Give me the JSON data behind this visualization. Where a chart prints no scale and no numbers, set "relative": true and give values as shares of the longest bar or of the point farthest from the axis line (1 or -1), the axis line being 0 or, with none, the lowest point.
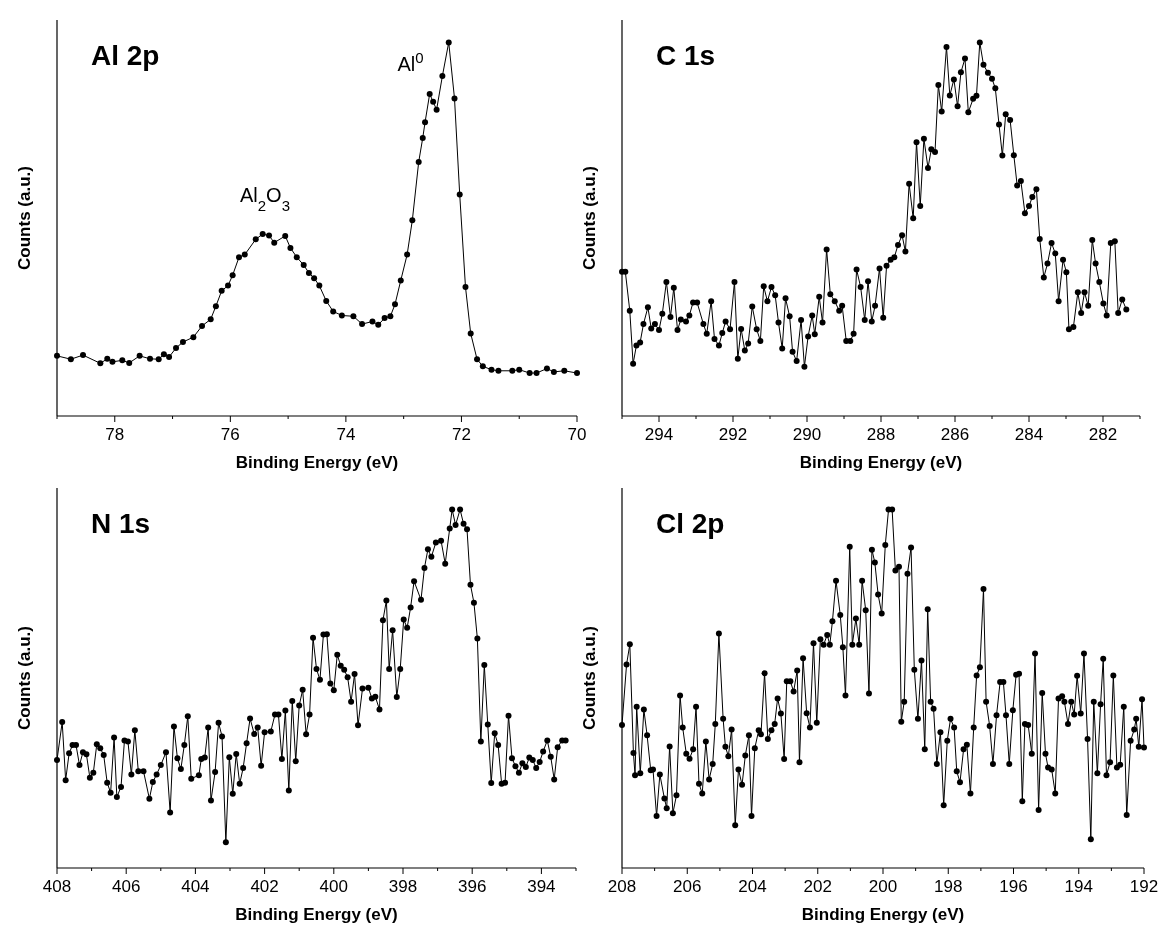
{
  "chart_data": [
    {
      "type": "line",
      "title": "Al 2p",
      "xlabel": "Binding Energy (eV)",
      "ylabel": "Counts (a.u.)",
      "relative": true,
      "marker": "circle",
      "line_style": "solid",
      "xlim": [
        79,
        70
      ],
      "xticks": [
        {
          "value": 79,
          "label": null
        },
        78,
        {
          "value": 77,
          "label": null
        },
        76,
        {
          "value": 75,
          "label": null
        },
        74,
        {
          "value": 73,
          "label": null
        },
        72,
        {
          "value": 71,
          "label": null
        },
        70
      ],
      "annotations": [
        "Al$_{2}$O$_{3}$",
        "Al$^{0}$"
      ],
      "x": [
        79.0,
        78.76,
        78.55,
        78.25,
        78.13,
        78.04,
        77.87,
        77.75,
        77.57,
        77.39,
        77.24,
        77.15,
        77.06,
        76.94,
        76.82,
        76.64,
        76.49,
        76.34,
        76.25,
        76.15,
        76.04,
        75.96,
        75.85,
        75.75,
        75.56,
        75.44,
        75.33,
        75.24,
        75.05,
        74.96,
        74.85,
        74.73,
        74.64,
        74.55,
        74.46,
        74.34,
        74.22,
        74.07,
        73.87,
        73.72,
        73.54,
        73.44,
        73.33,
        73.23,
        73.15,
        73.05,
        72.94,
        72.85,
        72.74,
        72.67,
        72.63,
        72.55,
        72.49,
        72.43,
        72.33,
        72.22,
        72.12,
        72.03,
        71.93,
        71.84,
        71.73,
        71.63,
        71.48,
        71.36,
        71.12,
        71.0,
        70.82,
        70.7,
        70.52,
        70.4,
        70.22,
        70.0
      ],
      "series": [
        {
          "color": "#000000",
          "values": [
            0.161,
            0.152,
            0.163,
            0.141,
            0.153,
            0.145,
            0.149,
            0.142,
            0.161,
            0.153,
            0.152,
            0.165,
            0.158,
            0.182,
            0.198,
            0.211,
            0.241,
            0.259,
            0.294,
            0.335,
            0.349,
            0.377,
            0.425,
            0.432,
            0.473,
            0.487,
            0.483,
            0.464,
            0.482,
            0.45,
            0.425,
            0.404,
            0.383,
            0.369,
            0.349,
            0.308,
            0.28,
            0.269,
            0.267,
            0.246,
            0.253,
            0.244,
            0.262,
            0.267,
            0.299,
            0.363,
            0.432,
            0.524,
            0.68,
            0.744,
            0.786,
            0.862,
            0.841,
            0.82,
            0.91,
            1.0,
            0.85,
            0.593,
            0.345,
            0.221,
            0.152,
            0.133,
            0.124,
            0.121,
            0.121,
            0.124,
            0.115,
            0.115,
            0.127,
            0.118,
            0.121,
            0.115
          ]
        }
      ]
    },
    {
      "type": "line",
      "title": "C 1s",
      "xlabel": "Binding Energy (eV)",
      "ylabel": "Counts (a.u.)",
      "relative": true,
      "marker": "circle",
      "line_style": "solid",
      "xlim": [
        295,
        281
      ],
      "xticks": [
        {
          "value": 295,
          "label": null
        },
        294,
        {
          "value": 293,
          "label": null
        },
        292,
        {
          "value": 291,
          "label": null
        },
        290,
        {
          "value": 289,
          "label": null
        },
        288,
        {
          "value": 287,
          "label": null
        },
        286,
        {
          "value": 285,
          "label": null
        },
        284,
        {
          "value": 283,
          "label": null
        },
        282,
        {
          "value": 281,
          "label": null
        }
      ],
      "x": [
        295.0,
        294.91,
        294.79,
        294.7,
        294.61,
        294.51,
        294.42,
        294.3,
        294.21,
        294.11,
        294.0,
        293.91,
        293.8,
        293.69,
        293.6,
        293.5,
        293.41,
        293.27,
        293.18,
        293.08,
        292.97,
        292.8,
        292.71,
        292.59,
        292.5,
        292.38,
        292.29,
        292.2,
        292.08,
        291.96,
        291.87,
        291.78,
        291.68,
        291.59,
        291.48,
        291.36,
        291.26,
        291.17,
        291.07,
        290.96,
        290.86,
        290.77,
        290.67,
        290.58,
        290.47,
        290.39,
        290.28,
        290.16,
        290.07,
        289.97,
        289.86,
        289.79,
        289.67,
        289.58,
        289.47,
        289.37,
        289.25,
        289.13,
        289.05,
        288.94,
        288.83,
        288.74,
        288.66,
        288.55,
        288.44,
        288.35,
        288.25,
        288.16,
        288.04,
        287.94,
        287.85,
        287.74,
        287.64,
        287.54,
        287.43,
        287.34,
        287.24,
        287.13,
        287.04,
        286.94,
        286.84,
        286.73,
        286.64,
        286.54,
        286.45,
        286.36,
        286.23,
        286.14,
        286.03,
        285.93,
        285.84,
        285.73,
        285.64,
        285.51,
        285.42,
        285.33,
        285.23,
        285.11,
        285.0,
        284.91,
        284.81,
        284.72,
        284.63,
        284.51,
        284.41,
        284.32,
        284.22,
        284.11,
        284.0,
        283.91,
        283.8,
        283.71,
        283.6,
        283.5,
        283.39,
        283.29,
        283.2,
        283.08,
        282.99,
        282.92,
        282.8,
        282.68,
        282.59,
        282.5,
        282.4,
        282.29,
        282.2,
        282.1,
        281.99,
        281.9,
        281.79,
        281.68,
        281.59,
        281.48,
        281.37
      ],
      "series": [
        {
          "color": "#000000",
          "values": [
            0.386,
            0.386,
            0.282,
            0.14,
            0.189,
            0.197,
            0.246,
            0.291,
            0.234,
            0.246,
            0.23,
            0.274,
            0.359,
            0.265,
            0.343,
            0.23,
            0.258,
            0.253,
            0.269,
            0.304,
            0.304,
            0.246,
            0.22,
            0.307,
            0.206,
            0.189,
            0.222,
            0.253,
            0.232,
            0.359,
            0.153,
            0.233,
            0.175,
            0.194,
            0.293,
            0.232,
            0.201,
            0.347,
            0.307,
            0.345,
            0.323,
            0.25,
            0.181,
            0.315,
            0.267,
            0.172,
            0.147,
            0.257,
            0.132,
            0.213,
            0.269,
            0.219,
            0.319,
            0.25,
            0.446,
            0.326,
            0.307,
            0.282,
            0.295,
            0.201,
            0.201,
            0.22,
            0.392,
            0.345,
            0.257,
            0.361,
            0.253,
            0.295,
            0.395,
            0.263,
            0.402,
            0.418,
            0.425,
            0.458,
            0.484,
            0.44,
            0.622,
            0.529,
            0.733,
            0.562,
            0.742,
            0.664,
            0.714,
            0.707,
            0.886,
            0.815,
            0.988,
            0.858,
            0.901,
            0.829,
            0.92,
            0.957,
            0.813,
            0.849,
            0.857,
            1.0,
            0.94,
            0.919,
            0.903,
            0.877,
            0.78,
            0.697,
            0.808,
            0.792,
            0.698,
            0.617,
            0.629,
            0.543,
            0.562,
            0.586,
            0.607,
            0.474,
            0.371,
            0.408,
            0.463,
            0.435,
            0.307,
            0.418,
            0.385,
            0.232,
            0.238,
            0.331,
            0.276,
            0.331,
            0.295,
            0.471,
            0.408,
            0.359,
            0.301,
            0.269,
            0.463,
            0.468,
            0.276,
            0.312,
            0.285
          ]
        }
      ]
    },
    {
      "type": "line",
      "title": "N 1s",
      "xlabel": "Binding Energy (eV)",
      "ylabel": "Counts (a.u.)",
      "relative": true,
      "marker": "circle",
      "line_style": "solid",
      "xlim": [
        408,
        393
      ],
      "xticks": [
        408,
        {
          "value": 407,
          "label": null
        },
        406,
        {
          "value": 405,
          "label": null
        },
        404,
        {
          "value": 403,
          "label": null
        },
        402,
        {
          "value": 401,
          "label": null
        },
        400,
        {
          "value": 399,
          "label": null
        },
        398,
        {
          "value": 397,
          "label": null
        },
        396,
        {
          "value": 395,
          "label": null
        },
        394,
        {
          "value": 393,
          "label": null
        }
      ],
      "x": [
        408.0,
        407.85,
        407.75,
        407.65,
        407.55,
        407.45,
        407.35,
        407.25,
        407.15,
        407.05,
        406.95,
        406.85,
        406.75,
        406.65,
        406.55,
        406.45,
        406.35,
        406.27,
        406.15,
        406.05,
        405.95,
        405.85,
        405.75,
        405.65,
        405.5,
        405.33,
        405.23,
        405.12,
        405.0,
        404.85,
        404.73,
        404.62,
        404.52,
        404.42,
        404.32,
        404.22,
        404.12,
        403.9,
        403.83,
        403.73,
        403.63,
        403.55,
        403.43,
        403.33,
        403.23,
        403.12,
        403.02,
        402.92,
        402.82,
        402.72,
        402.62,
        402.52,
        402.42,
        402.3,
        402.2,
        402.1,
        402.0,
        401.82,
        401.7,
        401.6,
        401.5,
        401.4,
        401.3,
        401.2,
        401.1,
        401.0,
        400.9,
        400.8,
        400.7,
        400.6,
        400.5,
        400.4,
        400.3,
        400.2,
        400.1,
        400.0,
        399.9,
        399.8,
        399.7,
        399.6,
        399.5,
        399.4,
        399.3,
        399.17,
        399.0,
        398.9,
        398.8,
        398.68,
        398.58,
        398.48,
        398.4,
        398.3,
        398.18,
        398.08,
        397.98,
        397.88,
        397.78,
        397.68,
        397.48,
        397.38,
        397.28,
        397.18,
        397.05,
        396.9,
        396.78,
        396.65,
        396.58,
        396.48,
        396.35,
        396.25,
        396.15,
        396.05,
        395.95,
        395.85,
        395.75,
        395.65,
        395.55,
        395.45,
        395.35,
        395.25,
        395.15,
        395.05,
        394.95,
        394.85,
        394.75,
        394.65,
        394.55,
        394.45,
        394.35,
        394.25,
        394.15,
        394.05,
        393.95,
        393.83,
        393.73,
        393.63,
        393.53,
        393.4,
        393.3
      ],
      "series": [
        {
          "color": "#000000",
          "values": [
            0.301,
            0.407,
            0.245,
            0.32,
            0.343,
            0.343,
            0.287,
            0.323,
            0.317,
            0.252,
            0.266,
            0.345,
            0.334,
            0.315,
            0.238,
            0.21,
            0.364,
            0.198,
            0.226,
            0.356,
            0.353,
            0.261,
            0.384,
            0.27,
            0.27,
            0.193,
            0.24,
            0.261,
            0.287,
            0.323,
            0.155,
            0.395,
            0.306,
            0.276,
            0.343,
            0.423,
            0.249,
            0.259,
            0.304,
            0.308,
            0.392,
            0.188,
            0.268,
            0.405,
            0.367,
            0.072,
            0.309,
            0.207,
            0.318,
            0.235,
            0.279,
            0.348,
            0.417,
            0.374,
            0.392,
            0.285,
            0.379,
            0.381,
            0.428,
            0.428,
            0.304,
            0.439,
            0.216,
            0.466,
            0.298,
            0.453,
            0.497,
            0.373,
            0.428,
            0.642,
            0.555,
            0.525,
            0.651,
            0.652,
            0.515,
            0.496,
            0.595,
            0.564,
            0.553,
            0.532,
            0.464,
            0.541,
            0.398,
            0.501,
            0.503,
            0.473,
            0.478,
            0.442,
            0.691,
            0.746,
            0.555,
            0.663,
            0.477,
            0.555,
            0.693,
            0.67,
            0.727,
            0.8,
            0.748,
            0.837,
            0.889,
            0.868,
            0.908,
            0.913,
            0.849,
            0.947,
            1.0,
            0.957,
            1.0,
            0.96,
            0.945,
            0.79,
            0.74,
            0.64,
            0.353,
            0.566,
            0.4,
            0.237,
            0.376,
            0.343,
            0.235,
            0.238,
            0.425,
            0.306,
            0.284,
            0.266,
            0.292,
            0.282,
            0.308,
            0.301,
            0.279,
            0.296,
            0.325,
            0.356,
            0.31,
            0.247,
            0.337,
            0.356,
            0.356
          ]
        }
      ]
    },
    {
      "type": "line",
      "title": "Cl 2p",
      "xlabel": "Binding Energy (eV)",
      "ylabel": "Counts (a.u.)",
      "relative": true,
      "marker": "circle",
      "line_style": "solid",
      "xlim": [
        208,
        192
      ],
      "xticks": [
        208,
        {
          "value": 207,
          "label": null
        },
        206,
        {
          "value": 205,
          "label": null
        },
        204,
        {
          "value": 203,
          "label": null
        },
        202,
        {
          "value": 201,
          "label": null
        },
        200,
        {
          "value": 199,
          "label": null
        },
        198,
        {
          "value": 197,
          "label": null
        },
        196,
        {
          "value": 195,
          "label": null
        },
        194,
        {
          "value": 193,
          "label": null
        },
        192
      ],
      "x": [
        208.0,
        207.86,
        207.76,
        207.65,
        207.6,
        207.55,
        207.44,
        207.33,
        207.23,
        207.12,
        207.05,
        206.94,
        206.84,
        206.7,
        206.63,
        206.54,
        206.44,
        206.33,
        206.22,
        206.14,
        206.03,
        205.93,
        205.82,
        205.73,
        205.64,
        205.54,
        205.43,
        205.33,
        205.22,
        205.14,
        205.03,
        204.9,
        204.83,
        204.74,
        204.64,
        204.53,
        204.43,
        204.32,
        204.22,
        204.11,
        204.03,
        203.93,
        203.81,
        203.74,
        203.63,
        203.53,
        203.42,
        203.32,
        203.23,
        203.13,
        203.03,
        202.95,
        202.84,
        202.74,
        202.63,
        202.56,
        202.45,
        202.34,
        202.24,
        202.13,
        202.03,
        201.92,
        201.82,
        201.71,
        201.63,
        201.55,
        201.44,
        201.31,
        201.23,
        201.15,
        201.02,
        200.94,
        200.83,
        200.73,
        200.64,
        200.53,
        200.43,
        200.34,
        200.25,
        200.15,
        200.04,
        199.93,
        199.83,
        199.72,
        199.62,
        199.51,
        199.44,
        199.35,
        199.25,
        199.14,
        199.04,
        198.93,
        198.82,
        198.72,
        198.63,
        198.54,
        198.45,
        198.35,
        198.24,
        198.14,
        198.03,
        197.93,
        197.82,
        197.74,
        197.64,
        197.53,
        197.43,
        197.32,
        197.22,
        197.13,
        197.03,
        196.92,
        196.84,
        196.73,
        196.63,
        196.52,
        196.41,
        196.31,
        196.23,
        196.13,
        196.02,
        195.92,
        195.83,
        195.73,
        195.65,
        195.55,
        195.44,
        195.34,
        195.23,
        195.12,
        195.02,
        194.94,
        194.83,
        194.72,
        194.62,
        194.51,
        194.44,
        194.33,
        194.23,
        194.14,
        194.05,
        193.94,
        193.84,
        193.73,
        193.63,
        193.54,
        193.43,
        193.33,
        193.25,
        193.15,
        193.04,
        192.94,
        192.83,
        192.73,
        192.62,
        192.53,
        192.41,
        192.3,
        192.24,
        192.16,
        192.06,
        192.0
      ],
      "series": [
        {
          "color": "#000000",
          "values": [
            0.399,
            0.568,
            0.624,
            0.321,
            0.259,
            0.45,
            0.264,
            0.442,
            0.37,
            0.273,
            0.275,
            0.145,
            0.261,
            0.194,
            0.167,
            0.339,
            0.153,
            0.203,
            0.481,
            0.392,
            0.319,
            0.305,
            0.331,
            0.45,
            0.235,
            0.208,
            0.353,
            0.247,
            0.29,
            0.402,
            0.654,
            0.416,
            0.338,
            0.312,
            0.386,
            0.119,
            0.275,
            0.232,
            0.314,
            0.37,
            0.145,
            0.334,
            0.384,
            0.373,
            0.543,
            0.36,
            0.384,
            0.402,
            0.473,
            0.431,
            0.304,
            0.521,
            0.521,
            0.492,
            0.551,
            0.295,
            0.585,
            0.432,
            0.392,
            0.627,
            0.405,
            0.638,
            0.623,
            0.65,
            0.623,
            0.688,
            0.801,
            0.706,
            0.616,
            0.481,
            0.896,
            0.623,
            0.696,
            0.623,
            0.801,
            0.719,
            0.487,
            0.888,
            0.852,
            0.763,
            0.71,
            0.901,
            1.0,
            1.0,
            0.83,
            0.84,
            0.408,
            0.464,
            0.821,
            0.894,
            0.553,
            0.416,
            0.579,
            0.331,
            0.722,
            0.464,
            0.444,
            0.29,
            0.379,
            0.175,
            0.355,
            0.416,
            0.392,
            0.27,
            0.239,
            0.331,
            0.344,
            0.208,
            0.392,
            0.537,
            0.56,
            0.778,
            0.464,
            0.396,
            0.29,
            0.426,
            0.519,
            0.519,
            0.426,
            0.29,
            0.44,
            0.539,
            0.542,
            0.186,
            0.402,
            0.399,
            0.319,
            0.598,
            0.162,
            0.488,
            0.319,
            0.28,
            0.275,
            0.208,
            0.473,
            0.479,
            0.464,
            0.402,
            0.464,
            0.428,
            0.536,
            0.431,
            0.598,
            0.36,
            0.08,
            0.464,
            0.264,
            0.457,
            0.584,
            0.259,
            0.295,
            0.537,
            0.28,
            0.288,
            0.45,
            0.148,
            0.355,
            0.386,
            0.416,
            0.338,
            0.471,
            0.336
          ]
        }
      ]
    }
  ]
}
